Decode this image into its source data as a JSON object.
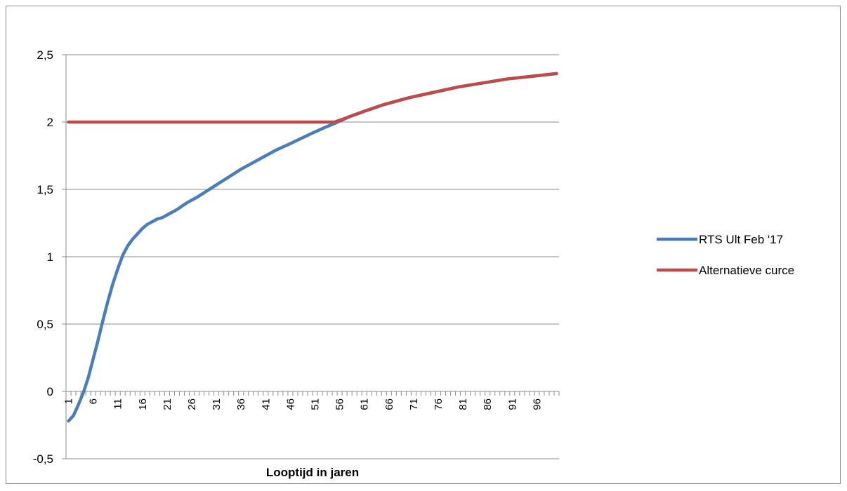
{
  "chart_data": {
    "type": "line",
    "title": "",
    "xlabel": "Looptijd in jaren",
    "ylabel": "",
    "ylim": [
      -0.5,
      2.5
    ],
    "y_ticks": [
      "-0,5",
      "0",
      "0,5",
      "1",
      "1,5",
      "2",
      "2,5"
    ],
    "x_range": [
      1,
      100
    ],
    "x_tick_labels": [
      "1",
      "6",
      "11",
      "16",
      "21",
      "26",
      "31",
      "36",
      "41",
      "46",
      "51",
      "56",
      "61",
      "66",
      "71",
      "76",
      "81",
      "86",
      "91",
      "96"
    ],
    "grid": "horizontal",
    "legend_position": "right",
    "series": [
      {
        "name": "RTS Ult Feb '17",
        "color": "#4a7ebb",
        "x": [
          1,
          2,
          3,
          4,
          5,
          6,
          7,
          8,
          9,
          10,
          11,
          12,
          13,
          14,
          15,
          16,
          17,
          18,
          19,
          20,
          21,
          23,
          25,
          27,
          30,
          33,
          36,
          40,
          43,
          46,
          50,
          53,
          55,
          58,
          61,
          65,
          70,
          75,
          80,
          85,
          90,
          95,
          100
        ],
        "values": [
          -0.22,
          -0.18,
          -0.1,
          -0.01,
          0.1,
          0.24,
          0.38,
          0.53,
          0.67,
          0.8,
          0.91,
          1.01,
          1.08,
          1.13,
          1.17,
          1.21,
          1.24,
          1.26,
          1.28,
          1.29,
          1.31,
          1.35,
          1.4,
          1.44,
          1.51,
          1.58,
          1.65,
          1.73,
          1.79,
          1.84,
          1.91,
          1.96,
          1.99,
          2.04,
          2.08,
          2.13,
          2.18,
          2.22,
          2.26,
          2.29,
          2.32,
          2.34,
          2.36
        ]
      },
      {
        "name": "Alternatieve curce",
        "color": "#be4b48",
        "x": [
          1,
          5,
          10,
          20,
          30,
          40,
          50,
          54,
          55,
          58,
          61,
          65,
          70,
          75,
          80,
          85,
          90,
          95,
          100
        ],
        "values": [
          2.0,
          2.0,
          2.0,
          2.0,
          2.0,
          2.0,
          2.0,
          2.0,
          2.0,
          2.04,
          2.08,
          2.13,
          2.18,
          2.22,
          2.26,
          2.29,
          2.32,
          2.34,
          2.36
        ]
      }
    ]
  }
}
